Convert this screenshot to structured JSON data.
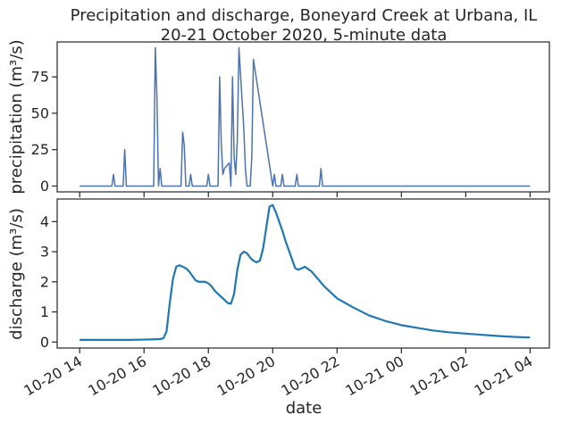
{
  "title_line1": "Precipitation and discharge, Boneyard Creek at Urbana, IL",
  "title_line2": "20-21 October 2020, 5-minute data",
  "chart_data": [
    {
      "type": "line",
      "ylabel": "precipitation (m³/s)",
      "ylim": [
        -4,
        99
      ],
      "yticks": [
        0,
        25,
        50,
        75
      ],
      "color": "#4c72b0",
      "series": [
        {
          "x": [
            14.0,
            15.0,
            15.05,
            15.1,
            15.2,
            15.35,
            15.4,
            15.45,
            16.3,
            16.35,
            16.4,
            16.45,
            16.5,
            16.55,
            16.6,
            16.65,
            17.15,
            17.2,
            17.25,
            17.3,
            17.4,
            17.45,
            17.5,
            17.95,
            18.0,
            18.05,
            18.3,
            18.35,
            18.4,
            18.45,
            18.5,
            18.65,
            18.7,
            18.75,
            18.8,
            18.85,
            18.9,
            18.95,
            19.1,
            19.15,
            19.2,
            19.25,
            19.3,
            19.35,
            19.4,
            20.0,
            20.05,
            20.1,
            20.15,
            20.25,
            20.3,
            20.35,
            20.7,
            20.75,
            20.8,
            21.45,
            21.5,
            21.55,
            21.6,
            21.65,
            21.7,
            21.75,
            28.0
          ],
          "y": [
            0,
            0,
            8,
            0,
            0,
            0,
            25,
            0,
            0,
            95,
            62,
            0,
            12,
            0,
            0,
            0,
            0,
            37,
            28,
            0,
            0,
            8,
            0,
            0,
            8,
            0,
            0,
            75,
            30,
            8,
            12,
            16,
            0,
            75,
            20,
            8,
            32,
            95,
            40,
            12,
            0,
            0,
            0,
            20,
            87,
            0,
            8,
            0,
            0,
            0,
            8,
            0,
            0,
            8,
            0,
            0,
            12,
            0,
            0,
            0,
            0,
            0,
            0
          ]
        }
      ]
    },
    {
      "type": "line",
      "xlabel": "date",
      "ylabel": "discharge (m³/s)",
      "ylim": [
        -0.2,
        4.75
      ],
      "yticks": [
        0,
        1,
        2,
        3,
        4
      ],
      "color": "#1f77b4",
      "xticks": [
        {
          "x": 14,
          "label": "10-20 14"
        },
        {
          "x": 16,
          "label": "10-20 16"
        },
        {
          "x": 18,
          "label": "10-20 18"
        },
        {
          "x": 20,
          "label": "10-20 20"
        },
        {
          "x": 22,
          "label": "10-20 22"
        },
        {
          "x": 24,
          "label": "10-21 00"
        },
        {
          "x": 26,
          "label": "10-21 02"
        },
        {
          "x": 28,
          "label": "10-21 04"
        }
      ],
      "series": [
        {
          "x": [
            14.0,
            15.0,
            15.5,
            16.0,
            16.3,
            16.5,
            16.6,
            16.7,
            16.8,
            16.9,
            17.0,
            17.1,
            17.2,
            17.3,
            17.4,
            17.5,
            17.6,
            17.7,
            17.8,
            17.9,
            18.0,
            18.1,
            18.2,
            18.3,
            18.4,
            18.5,
            18.6,
            18.7,
            18.8,
            18.9,
            19.0,
            19.1,
            19.2,
            19.3,
            19.4,
            19.5,
            19.6,
            19.7,
            19.8,
            19.9,
            20.0,
            20.1,
            20.2,
            20.3,
            20.4,
            20.5,
            20.6,
            20.7,
            20.8,
            20.9,
            21.0,
            21.2,
            21.4,
            21.6,
            21.8,
            22.0,
            22.5,
            23.0,
            23.5,
            24.0,
            24.5,
            25.0,
            25.5,
            26.0,
            26.5,
            27.0,
            27.5,
            28.0
          ],
          "y": [
            0.07,
            0.07,
            0.07,
            0.08,
            0.09,
            0.1,
            0.12,
            0.35,
            1.3,
            2.1,
            2.5,
            2.55,
            2.5,
            2.45,
            2.35,
            2.2,
            2.05,
            2.0,
            2.0,
            2.0,
            1.95,
            1.85,
            1.7,
            1.6,
            1.5,
            1.4,
            1.3,
            1.27,
            1.6,
            2.4,
            2.9,
            3.0,
            2.95,
            2.8,
            2.7,
            2.65,
            2.7,
            3.1,
            3.8,
            4.5,
            4.55,
            4.3,
            4.0,
            3.7,
            3.35,
            3.05,
            2.75,
            2.45,
            2.4,
            2.45,
            2.5,
            2.35,
            2.1,
            1.85,
            1.65,
            1.45,
            1.15,
            0.88,
            0.7,
            0.56,
            0.47,
            0.38,
            0.32,
            0.28,
            0.24,
            0.2,
            0.17,
            0.15
          ]
        }
      ]
    }
  ]
}
